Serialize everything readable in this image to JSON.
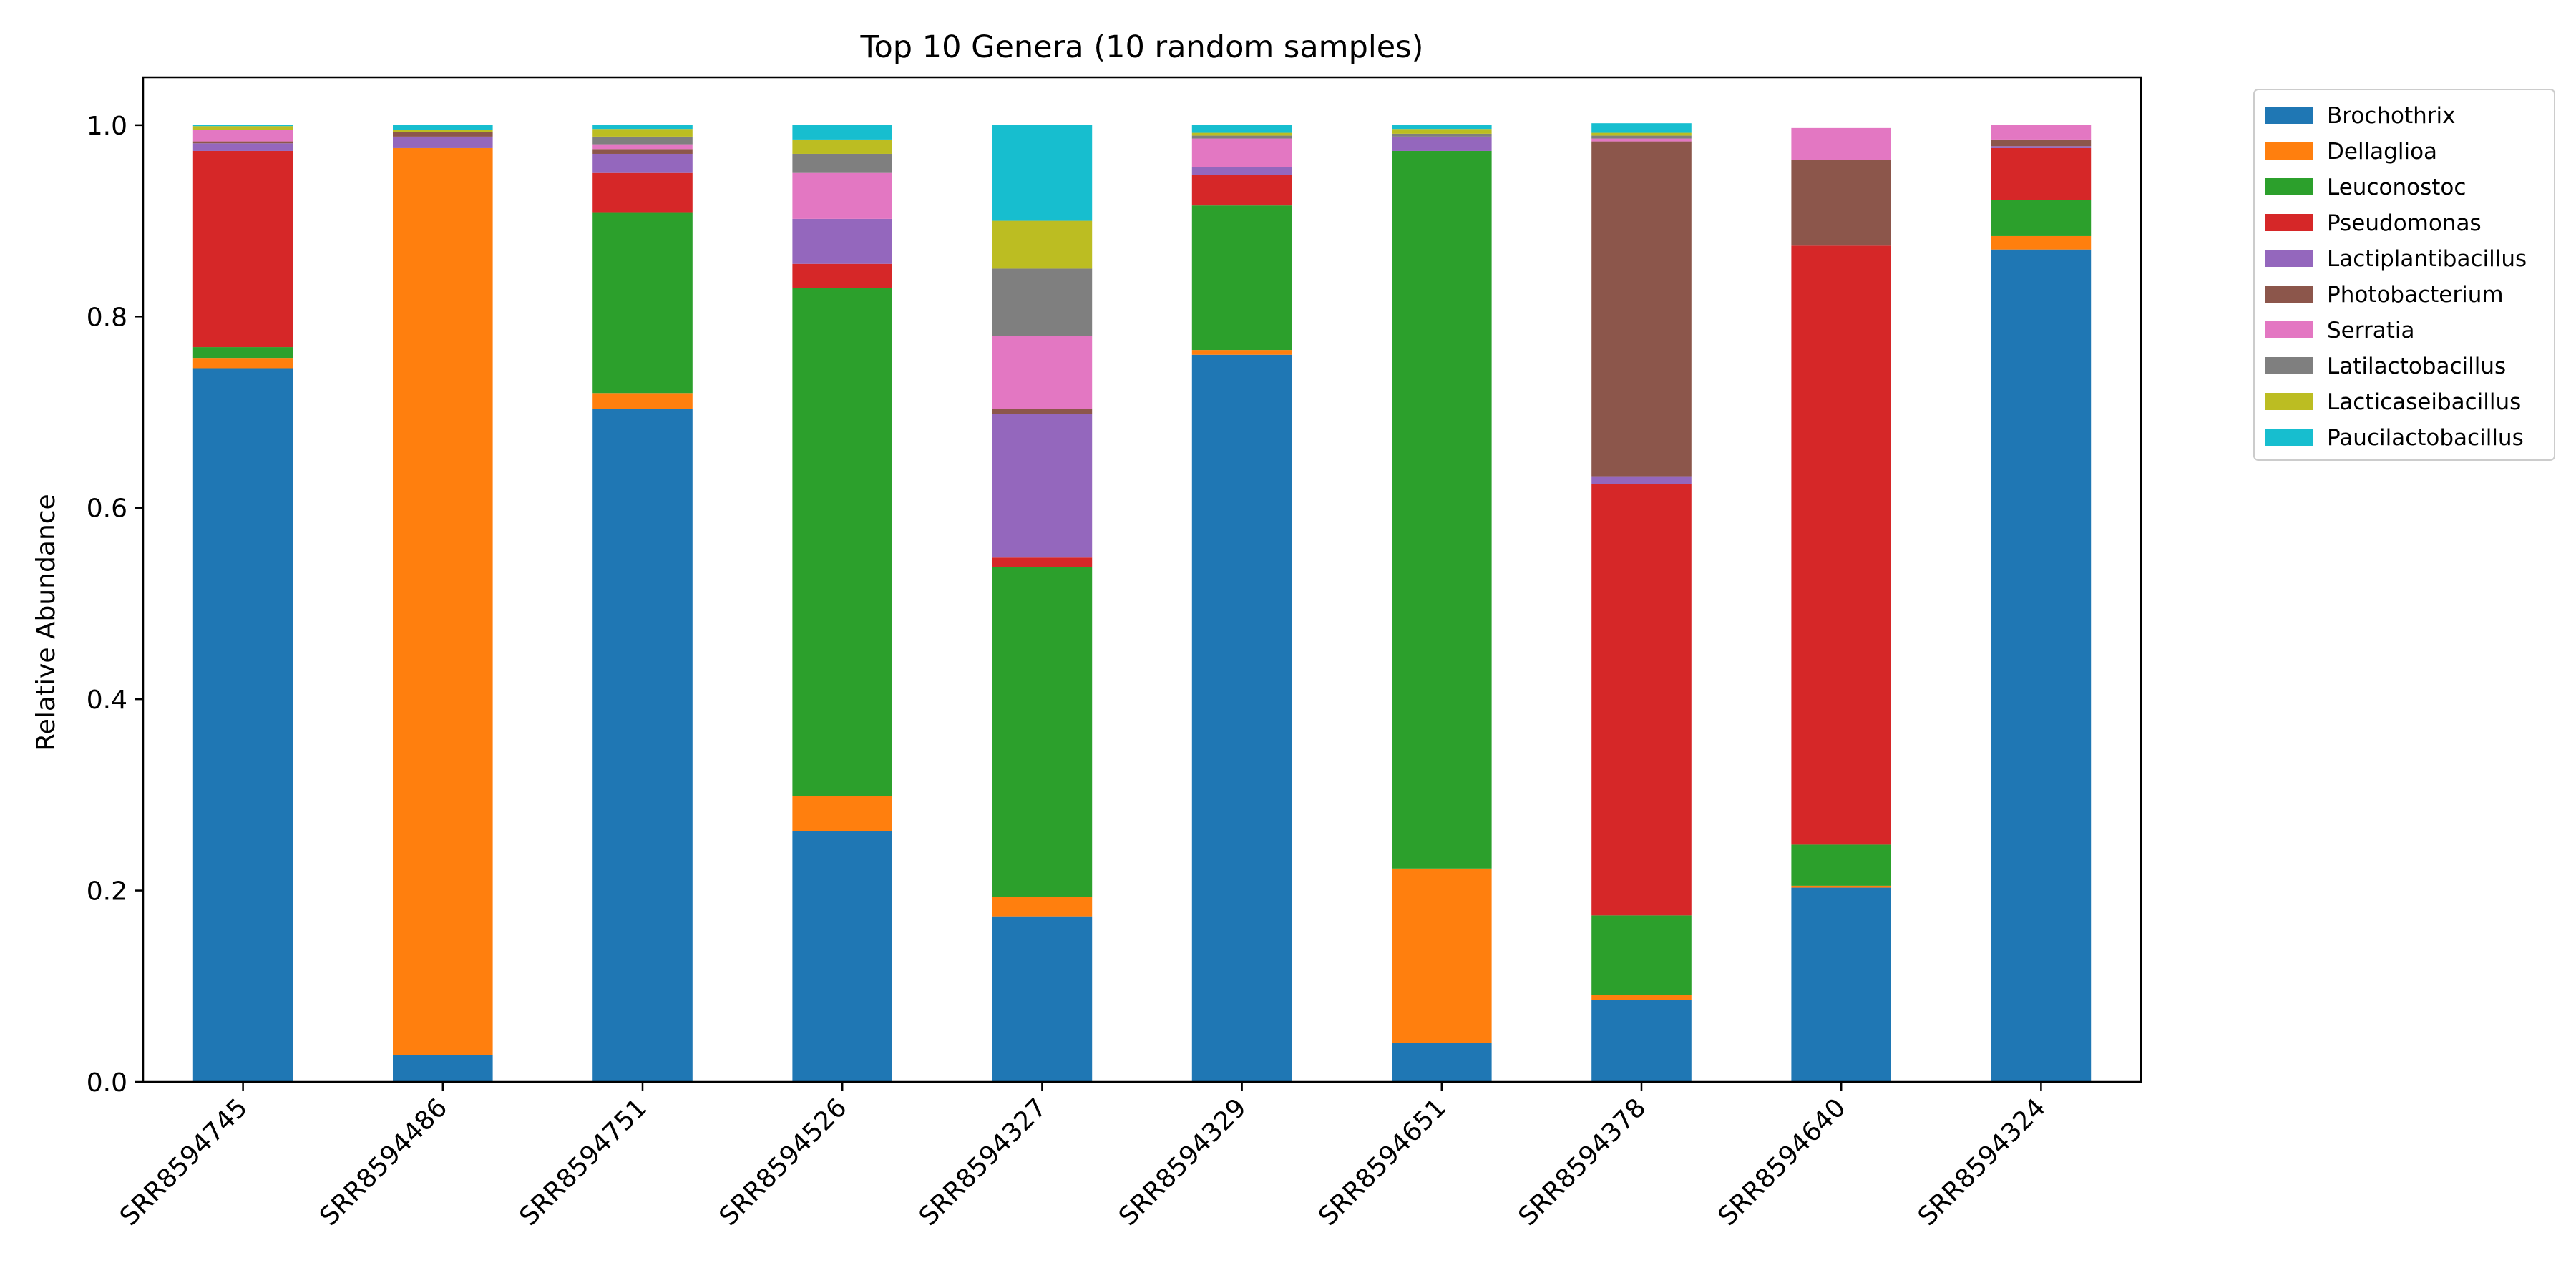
{
  "chart_data": {
    "type": "bar",
    "stacked": true,
    "title": "Top 10 Genera (10 random samples)",
    "xlabel": "",
    "ylabel": "Relative Abundance",
    "ylim": [
      0,
      1.05
    ],
    "yticks": [
      "0.0",
      "0.2",
      "0.4",
      "0.6",
      "0.8",
      "1.0"
    ],
    "grid": false,
    "legend_position": "outside-right",
    "categories": [
      "SRR8594745",
      "SRR8594486",
      "SRR8594751",
      "SRR8594526",
      "SRR8594327",
      "SRR8594329",
      "SRR8594651",
      "SRR8594378",
      "SRR8594640",
      "SRR8594324"
    ],
    "series": [
      {
        "name": "Brochothrix",
        "color": "#1f77b4",
        "values": [
          0.746,
          0.028,
          0.703,
          0.262,
          0.173,
          0.76,
          0.041,
          0.086,
          0.203,
          0.87
        ]
      },
      {
        "name": "Dellaglioa",
        "color": "#ff7f0e",
        "values": [
          0.01,
          0.948,
          0.017,
          0.037,
          0.02,
          0.005,
          0.182,
          0.005,
          0.002,
          0.014
        ]
      },
      {
        "name": "Leuconostoc",
        "color": "#2ca02c",
        "values": [
          0.012,
          0.0,
          0.189,
          0.531,
          0.345,
          0.151,
          0.75,
          0.083,
          0.043,
          0.038
        ]
      },
      {
        "name": "Pseudomonas",
        "color": "#d62728",
        "values": [
          0.205,
          0.0,
          0.041,
          0.025,
          0.01,
          0.032,
          0.0,
          0.451,
          0.626,
          0.054
        ]
      },
      {
        "name": "Lactiplantibacillus",
        "color": "#9467bd",
        "values": [
          0.008,
          0.012,
          0.02,
          0.047,
          0.15,
          0.008,
          0.015,
          0.008,
          0.0,
          0.002
        ]
      },
      {
        "name": "Photobacterium",
        "color": "#8c564b",
        "values": [
          0.002,
          0.005,
          0.005,
          0.0,
          0.005,
          0.0,
          0.0,
          0.35,
          0.09,
          0.007
        ]
      },
      {
        "name": "Serratia",
        "color": "#e377c2",
        "values": [
          0.012,
          0.0,
          0.005,
          0.048,
          0.077,
          0.03,
          0.0,
          0.003,
          0.033,
          0.015
        ]
      },
      {
        "name": "Latilactobacillus",
        "color": "#7f7f7f",
        "values": [
          0.0,
          0.0,
          0.008,
          0.02,
          0.07,
          0.003,
          0.003,
          0.003,
          0.0,
          0.0
        ]
      },
      {
        "name": "Lacticaseibacillus",
        "color": "#bcbd22",
        "values": [
          0.004,
          0.002,
          0.008,
          0.015,
          0.05,
          0.003,
          0.005,
          0.003,
          0.0,
          0.0
        ]
      },
      {
        "name": "Paucilactobacillus",
        "color": "#17becf",
        "values": [
          0.001,
          0.005,
          0.004,
          0.015,
          0.1,
          0.008,
          0.004,
          0.01,
          0.0,
          0.0
        ]
      }
    ]
  }
}
